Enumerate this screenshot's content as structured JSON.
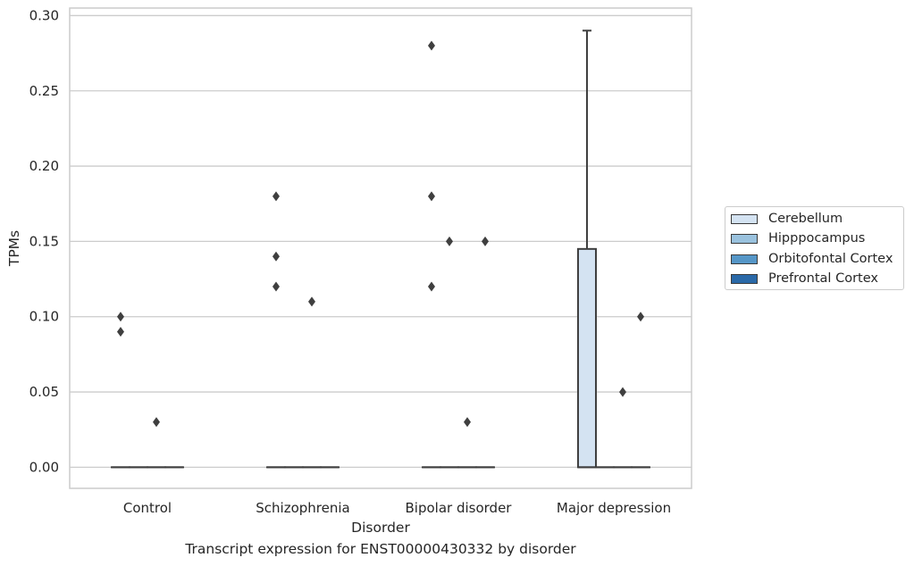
{
  "caption": "Transcript expression for ENST00000430332 by disorder",
  "chart_data": {
    "type": "box",
    "title": "",
    "xlabel": "Disorder",
    "ylabel": "TPMs",
    "categories": [
      "Control",
      "Schizophrenia",
      "Bipolar disorder",
      "Major depression"
    ],
    "ylim": [
      -0.014,
      0.305
    ],
    "yticks": [
      "0.00",
      "0.05",
      "0.10",
      "0.15",
      "0.20",
      "0.25",
      "0.30"
    ],
    "grid": "horizontal",
    "legend_position": "right",
    "series": [
      {
        "name": "Cerebellum",
        "color": "#d4e3f2",
        "boxes": [
          {
            "category": "Control",
            "q1": 0,
            "median": 0,
            "q3": 0,
            "whisker_low": 0,
            "whisker_high": 0,
            "outliers": [
              0.09,
              0.1
            ]
          },
          {
            "category": "Schizophrenia",
            "q1": 0,
            "median": 0,
            "q3": 0,
            "whisker_low": 0,
            "whisker_high": 0,
            "outliers": [
              0.12,
              0.14,
              0.18
            ]
          },
          {
            "category": "Bipolar disorder",
            "q1": 0,
            "median": 0,
            "q3": 0,
            "whisker_low": 0,
            "whisker_high": 0,
            "outliers": [
              0.12,
              0.18,
              0.28
            ]
          },
          {
            "category": "Major depression",
            "q1": 0,
            "median": 0,
            "q3": 0.145,
            "whisker_low": 0,
            "whisker_high": 0.29,
            "outliers": []
          }
        ]
      },
      {
        "name": "Hipppocampus",
        "color": "#9ac2de",
        "boxes": [
          {
            "category": "Control",
            "q1": 0,
            "median": 0,
            "q3": 0,
            "whisker_low": 0,
            "whisker_high": 0,
            "outliers": []
          },
          {
            "category": "Schizophrenia",
            "q1": 0,
            "median": 0,
            "q3": 0,
            "whisker_low": 0,
            "whisker_high": 0,
            "outliers": []
          },
          {
            "category": "Bipolar disorder",
            "q1": 0,
            "median": 0,
            "q3": 0,
            "whisker_low": 0,
            "whisker_high": 0,
            "outliers": [
              0.15
            ]
          },
          {
            "category": "Major depression",
            "q1": 0,
            "median": 0,
            "q3": 0,
            "whisker_low": 0,
            "whisker_high": 0,
            "outliers": []
          }
        ]
      },
      {
        "name": "Orbitofontal Cortex",
        "color": "#5596c7",
        "boxes": [
          {
            "category": "Control",
            "q1": 0,
            "median": 0,
            "q3": 0,
            "whisker_low": 0,
            "whisker_high": 0,
            "outliers": [
              0.03
            ]
          },
          {
            "category": "Schizophrenia",
            "q1": 0,
            "median": 0,
            "q3": 0,
            "whisker_low": 0,
            "whisker_high": 0,
            "outliers": [
              0.11
            ]
          },
          {
            "category": "Bipolar disorder",
            "q1": 0,
            "median": 0,
            "q3": 0,
            "whisker_low": 0,
            "whisker_high": 0,
            "outliers": [
              0.03
            ]
          },
          {
            "category": "Major depression",
            "q1": 0,
            "median": 0,
            "q3": 0,
            "whisker_low": 0,
            "whisker_high": 0,
            "outliers": [
              0.05
            ]
          }
        ]
      },
      {
        "name": "Prefrontal Cortex",
        "color": "#2a69a8",
        "boxes": [
          {
            "category": "Control",
            "q1": 0,
            "median": 0,
            "q3": 0,
            "whisker_low": 0,
            "whisker_high": 0,
            "outliers": []
          },
          {
            "category": "Schizophrenia",
            "q1": 0,
            "median": 0,
            "q3": 0,
            "whisker_low": 0,
            "whisker_high": 0,
            "outliers": []
          },
          {
            "category": "Bipolar disorder",
            "q1": 0,
            "median": 0,
            "q3": 0,
            "whisker_low": 0,
            "whisker_high": 0,
            "outliers": [
              0.15
            ]
          },
          {
            "category": "Major depression",
            "q1": 0,
            "median": 0,
            "q3": 0,
            "whisker_low": 0,
            "whisker_high": 0,
            "outliers": [
              0.1
            ]
          }
        ]
      }
    ]
  }
}
